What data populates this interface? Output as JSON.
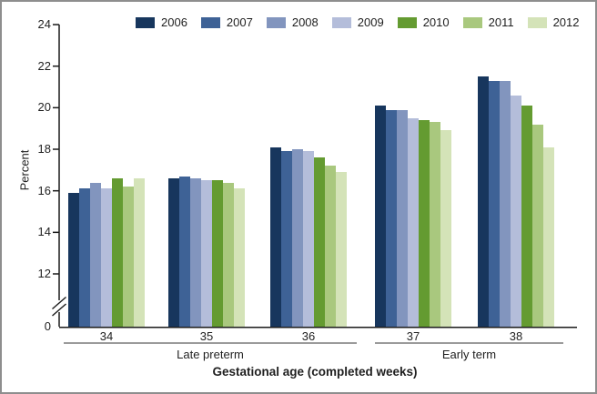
{
  "frame": {
    "background": "#ffffff",
    "border_color": "#8e8e8e"
  },
  "chart_data": {
    "type": "bar",
    "title": "",
    "ylabel": "Percent",
    "xlabel": "Gestational age (completed weeks)",
    "ylim": [
      0,
      24
    ],
    "yticks_labeled": [
      24,
      22,
      20,
      18,
      16,
      14,
      12,
      0
    ],
    "axis_break_between": [
      0,
      12
    ],
    "grid": "off",
    "legend_position": "top-center",
    "categories": [
      "34",
      "35",
      "36",
      "37",
      "38"
    ],
    "sections": [
      {
        "label": "Late preterm",
        "categories": [
          "34",
          "35",
          "36"
        ]
      },
      {
        "label": "Early term",
        "categories": [
          "37",
          "38"
        ]
      }
    ],
    "series": [
      {
        "name": "2006",
        "color": "#17365D",
        "values": [
          15.9,
          16.6,
          18.1,
          20.1,
          21.5
        ]
      },
      {
        "name": "2007",
        "color": "#3E6296",
        "values": [
          16.1,
          16.7,
          17.9,
          19.9,
          21.3
        ]
      },
      {
        "name": "2008",
        "color": "#8295BE",
        "values": [
          16.4,
          16.6,
          18.0,
          19.9,
          21.3
        ]
      },
      {
        "name": "2009",
        "color": "#B4BDDA",
        "values": [
          16.1,
          16.5,
          17.9,
          19.5,
          20.6
        ]
      },
      {
        "name": "2010",
        "color": "#649B31",
        "values": [
          16.6,
          16.5,
          17.6,
          19.4,
          20.1
        ]
      },
      {
        "name": "2011",
        "color": "#A9C87E",
        "values": [
          16.2,
          16.4,
          17.2,
          19.3,
          19.2
        ]
      },
      {
        "name": "2012",
        "color": "#D4E3B8",
        "values": [
          16.6,
          16.1,
          16.9,
          18.9,
          18.1
        ]
      }
    ],
    "axis_color": "#1a1a1a"
  }
}
